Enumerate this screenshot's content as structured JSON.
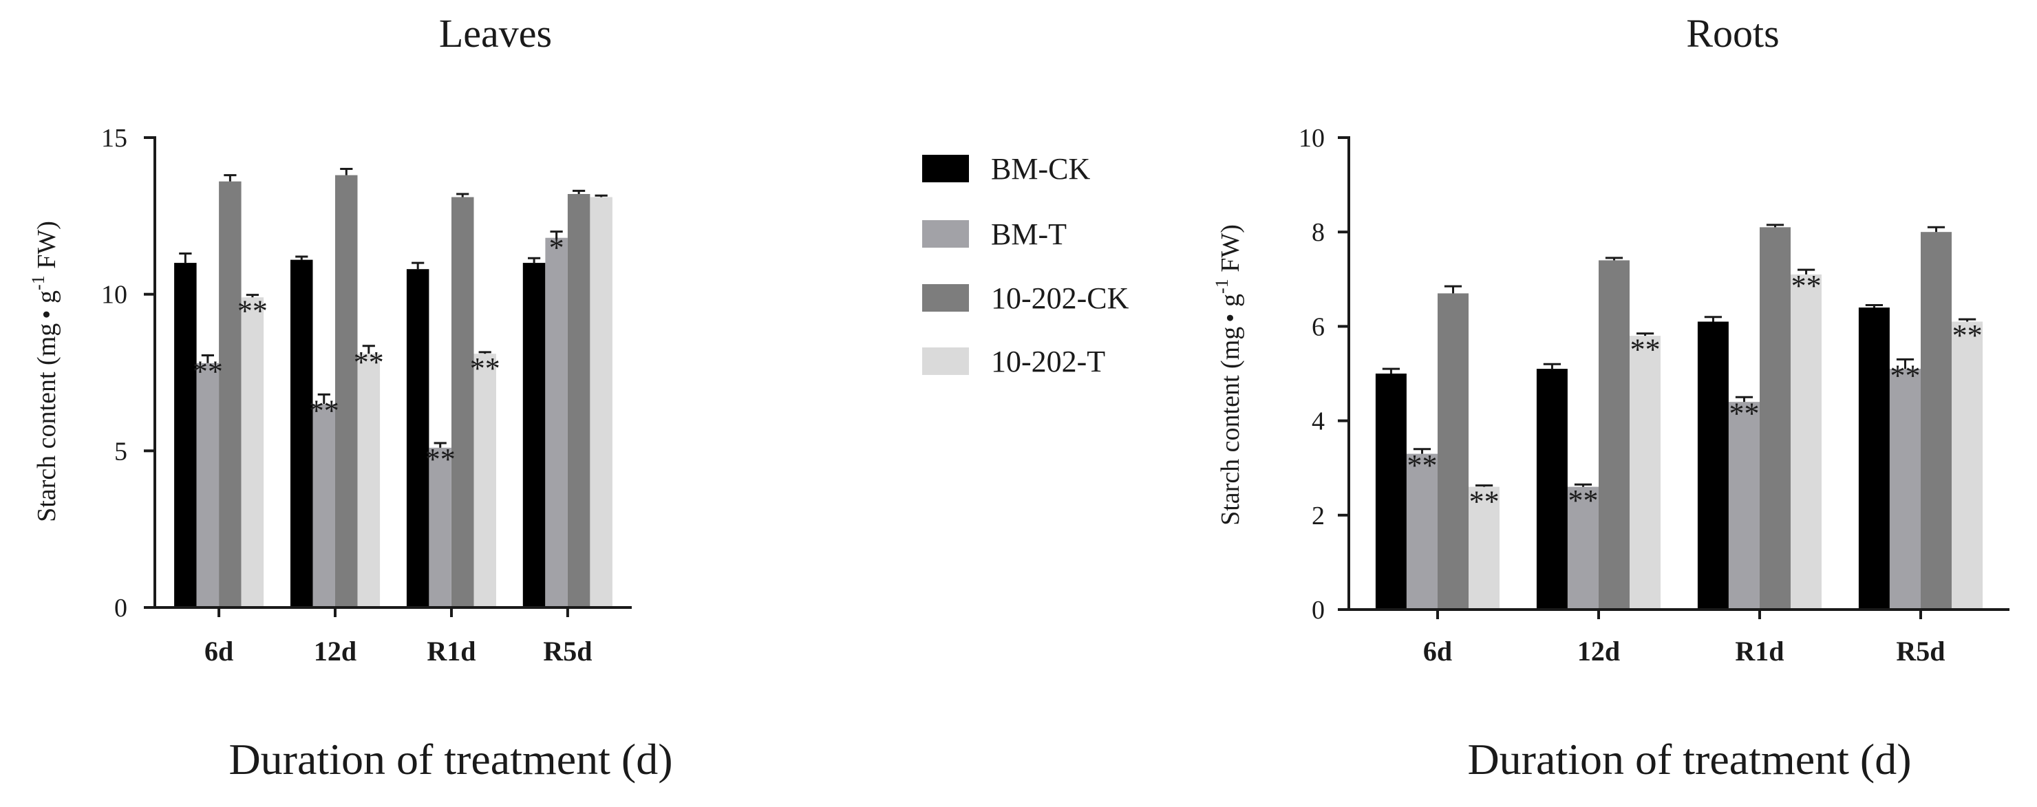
{
  "figure": {
    "legend": [
      "BM-CK",
      "BM-T",
      "10-202-CK",
      "10-202-T"
    ]
  },
  "chart_data": [
    {
      "type": "bar",
      "title": "Leaves",
      "xlabel": "Duration of treatment (d)",
      "ylabel_main": "Starch content (mg",
      "ylabel_dot": "•",
      "ylabel_g": " g",
      "ylabel_sup": "-1",
      "ylabel_tail": " FW)",
      "ylim": [
        0,
        15
      ],
      "yticks": [
        "0",
        "5",
        "10",
        "15"
      ],
      "categories": [
        "6d",
        "12d",
        "R1d",
        "R5d"
      ],
      "series": [
        {
          "name": "BM-CK",
          "color": "#000000",
          "values": [
            11.0,
            11.1,
            10.8,
            11.0
          ],
          "errors": [
            0.3,
            0.1,
            0.2,
            0.15
          ],
          "sig": [
            "",
            "",
            "",
            ""
          ]
        },
        {
          "name": "BM-T",
          "color": "#a2a2a7",
          "values": [
            7.8,
            6.5,
            5.1,
            11.8
          ],
          "errors": [
            0.25,
            0.3,
            0.15,
            0.2
          ],
          "sig": [
            "**",
            "**",
            "**",
            "*"
          ]
        },
        {
          "name": "10-202-CK",
          "color": "#7d7d7d",
          "values": [
            13.6,
            13.8,
            13.1,
            13.2
          ],
          "errors": [
            0.2,
            0.2,
            0.1,
            0.1
          ],
          "sig": [
            "",
            "",
            "",
            ""
          ]
        },
        {
          "name": "10-202-T",
          "color": "#dadada",
          "values": [
            9.9,
            8.1,
            8.1,
            13.1
          ],
          "errors": [
            0.08,
            0.25,
            0.05,
            0.05
          ],
          "sig": [
            "**",
            "**",
            "**",
            ""
          ]
        }
      ]
    },
    {
      "type": "bar",
      "title": "Roots",
      "xlabel": "Duration of treatment (d)",
      "ylabel_main": "Starch content (mg",
      "ylabel_dot": "•",
      "ylabel_g": " g",
      "ylabel_sup": "-1",
      "ylabel_tail": " FW)",
      "ylim": [
        0,
        10
      ],
      "yticks": [
        "0",
        "2",
        "4",
        "6",
        "8",
        "10"
      ],
      "categories": [
        "6d",
        "12d",
        "R1d",
        "R5d"
      ],
      "series": [
        {
          "name": "BM-CK",
          "color": "#000000",
          "values": [
            5.0,
            5.1,
            6.1,
            6.4
          ],
          "errors": [
            0.1,
            0.1,
            0.1,
            0.05
          ],
          "sig": [
            "",
            "",
            "",
            ""
          ]
        },
        {
          "name": "BM-T",
          "color": "#a2a2a7",
          "values": [
            3.3,
            2.6,
            4.4,
            5.1
          ],
          "errors": [
            0.1,
            0.05,
            0.1,
            0.2
          ],
          "sig": [
            "**",
            "**",
            "**",
            "**"
          ]
        },
        {
          "name": "10-202-CK",
          "color": "#7d7d7d",
          "values": [
            6.7,
            7.4,
            8.1,
            8.0
          ],
          "errors": [
            0.15,
            0.05,
            0.05,
            0.1
          ],
          "sig": [
            "",
            "",
            "",
            ""
          ]
        },
        {
          "name": "10-202-T",
          "color": "#dadada",
          "values": [
            2.6,
            5.8,
            7.1,
            6.1
          ],
          "errors": [
            0.03,
            0.05,
            0.1,
            0.05
          ],
          "sig": [
            "**",
            "**",
            "**",
            "**"
          ]
        }
      ]
    }
  ]
}
